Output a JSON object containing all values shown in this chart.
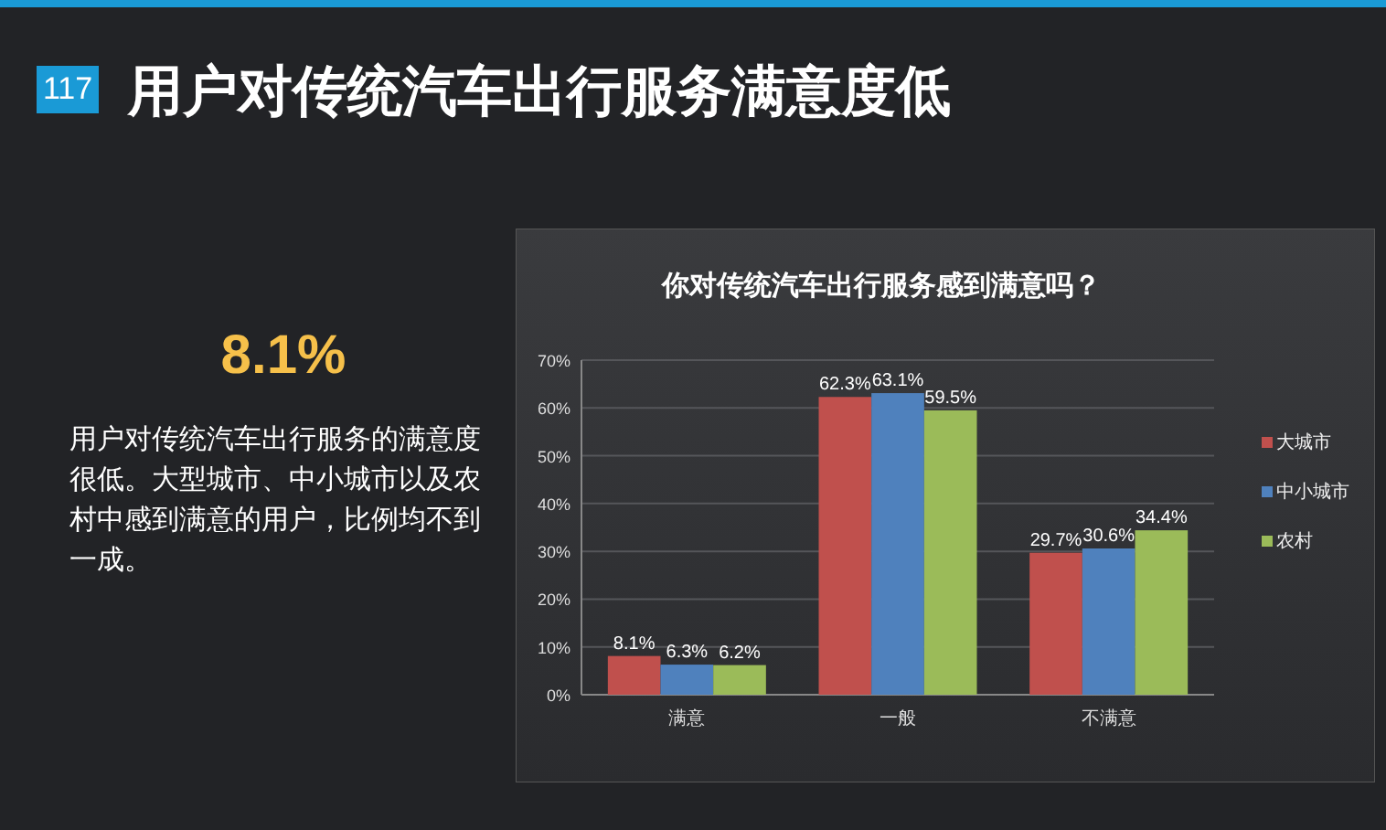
{
  "chart_data": [
    {
      "type": "other",
      "title": "用户对传统汽车出行服务满意度低",
      "annotations": [
        "117",
        "8.1%",
        "用户对传统汽车出行服务的满意度很低。大型城市、中小城市以及农村中感到满意的用户，比例均不到一成。"
      ]
    },
    {
      "type": "bar",
      "title": "你对传统汽车出行服务感到满意吗？",
      "categories": [
        "满意",
        "一般",
        "不满意"
      ],
      "series": [
        {
          "name": "大城市",
          "color": "#c0504d",
          "values": [
            8.1,
            62.3,
            29.7
          ],
          "value_labels": [
            "8.1%",
            "62.3%",
            "29.7%"
          ]
        },
        {
          "name": "中小城市",
          "color": "#4f81bd",
          "values": [
            6.3,
            63.1,
            30.6
          ],
          "value_labels": [
            "6.3%",
            "63.1%",
            "30.6%"
          ]
        },
        {
          "name": "农村",
          "color": "#9bbb59",
          "values": [
            6.2,
            59.5,
            34.4
          ],
          "value_labels": [
            "6.2%",
            "59.5%",
            "34.4%"
          ]
        }
      ],
      "ylim": [
        0,
        70
      ],
      "yticks": [
        {
          "value": 0,
          "label": "0%"
        },
        {
          "value": 10,
          "label": "10%"
        },
        {
          "value": 20,
          "label": "20%"
        },
        {
          "value": 30,
          "label": "30%"
        },
        {
          "value": 40,
          "label": "40%"
        },
        {
          "value": 50,
          "label": "50%"
        },
        {
          "value": 60,
          "label": "60%"
        },
        {
          "value": 70,
          "label": "70%"
        }
      ],
      "grid": "y",
      "legend": "right"
    }
  ]
}
